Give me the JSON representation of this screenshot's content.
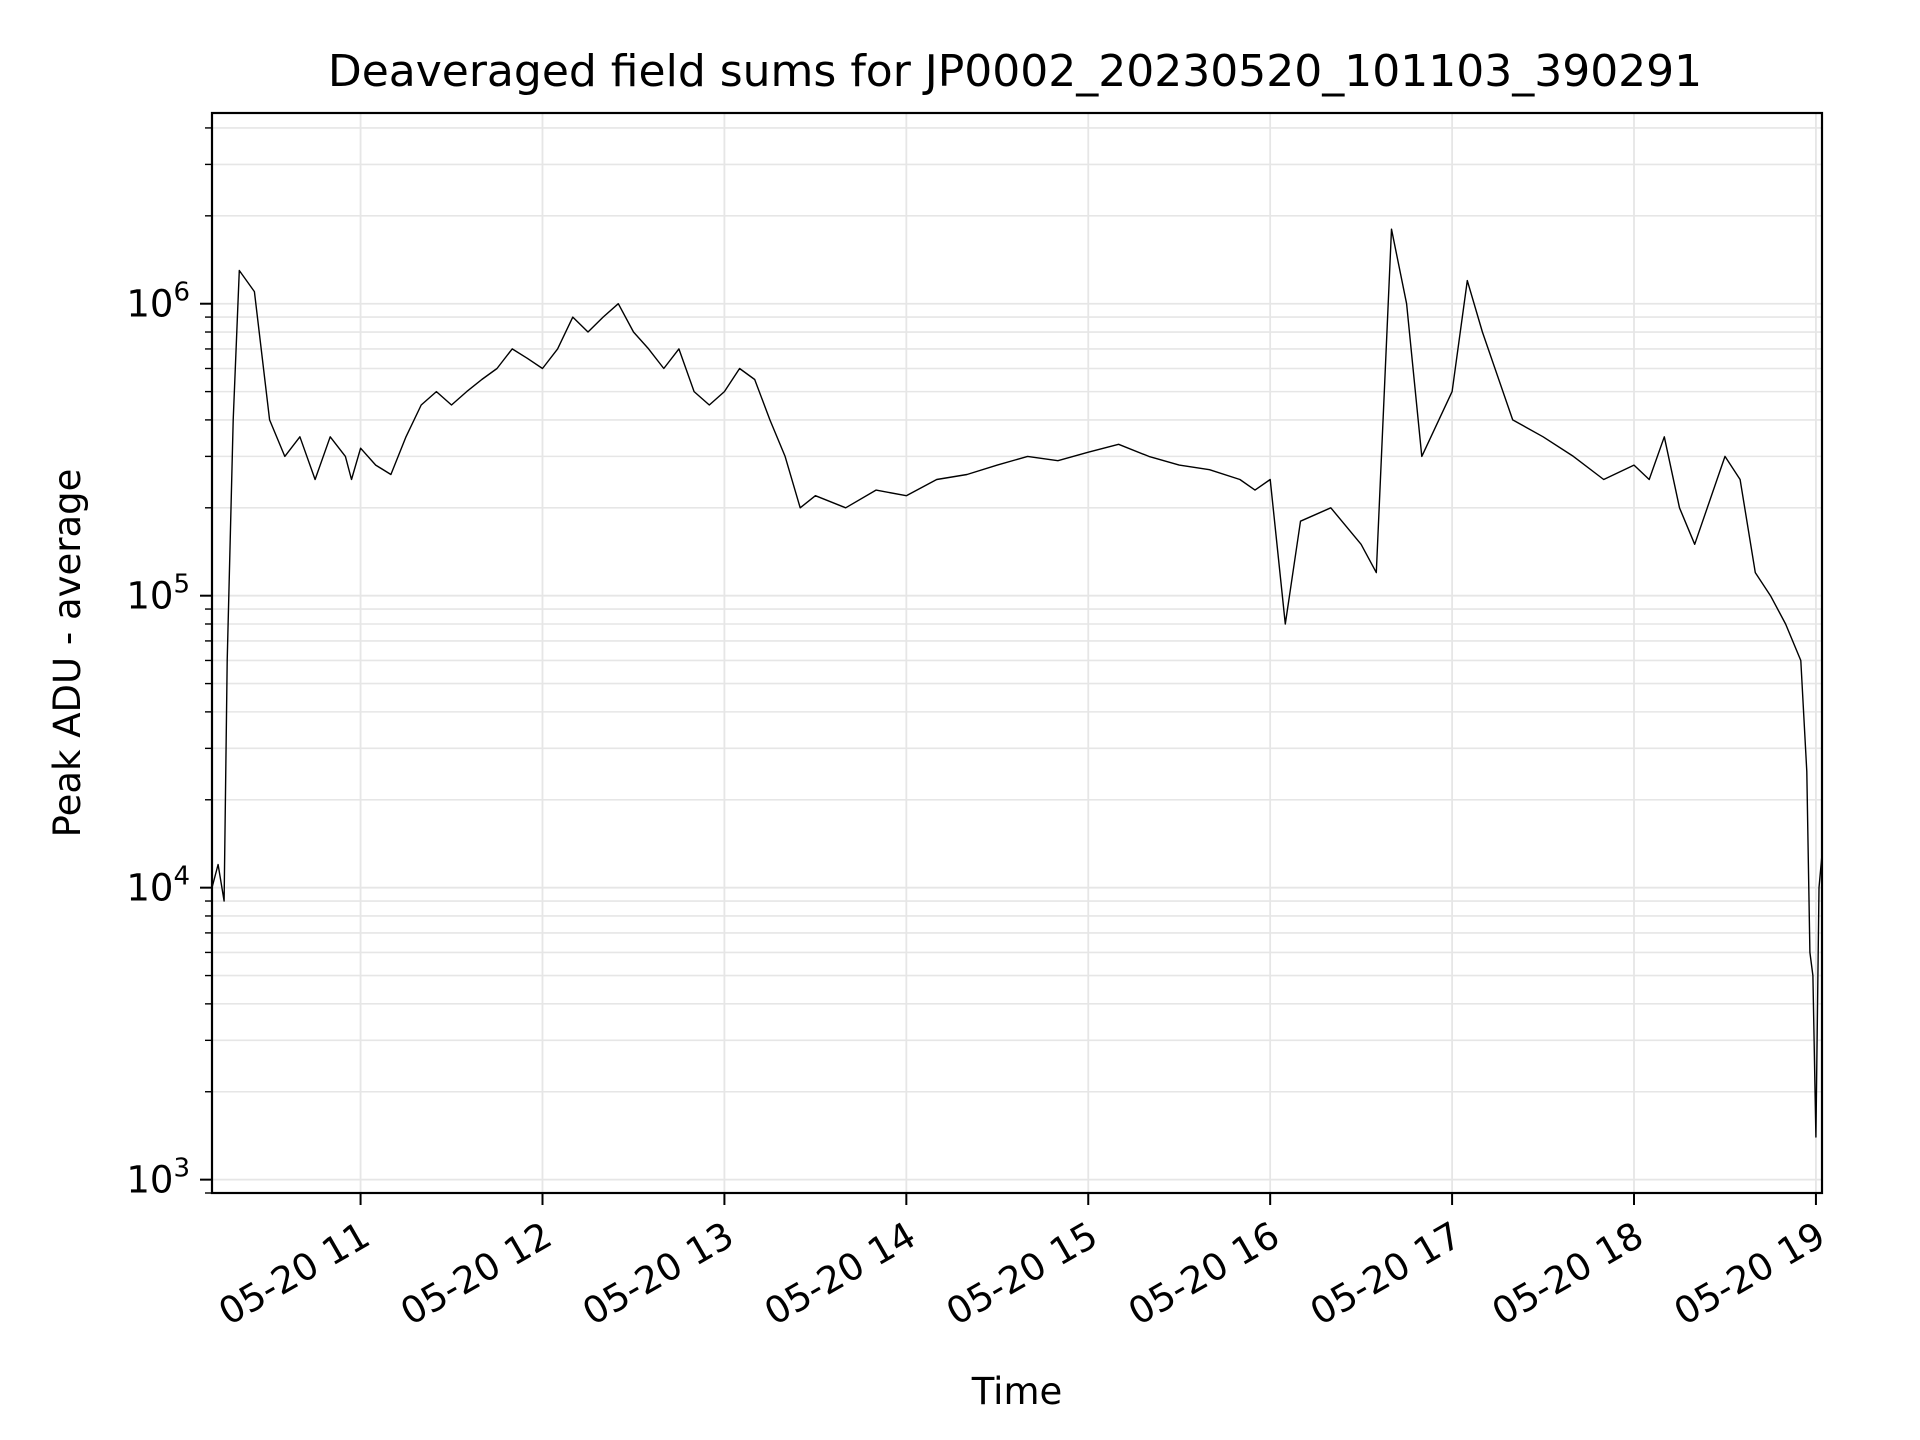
{
  "chart_data": {
    "type": "line",
    "title": "Deaveraged field sums for JP0002_20230520_101103_390291",
    "xlabel": "Time",
    "ylabel": "Peak ADU - average",
    "x_axis": {
      "type": "time",
      "range": [
        "05-20 10:11",
        "05-20 19:02"
      ],
      "ticks": [
        {
          "label": "05-20 11",
          "value": "05-20 11:00"
        },
        {
          "label": "05-20 12",
          "value": "05-20 12:00"
        },
        {
          "label": "05-20 13",
          "value": "05-20 13:00"
        },
        {
          "label": "05-20 14",
          "value": "05-20 14:00"
        },
        {
          "label": "05-20 15",
          "value": "05-20 15:00"
        },
        {
          "label": "05-20 16",
          "value": "05-20 16:00"
        },
        {
          "label": "05-20 17",
          "value": "05-20 17:00"
        },
        {
          "label": "05-20 18",
          "value": "05-20 18:00"
        },
        {
          "label": "05-20 19",
          "value": "05-20 19:00"
        }
      ],
      "tick_rotation_deg": 30
    },
    "y_axis": {
      "scale": "log",
      "range": [
        900,
        4500000
      ],
      "ticks": [
        {
          "base": "10",
          "exp": "3",
          "value": 1000
        },
        {
          "base": "10",
          "exp": "4",
          "value": 10000
        },
        {
          "base": "10",
          "exp": "5",
          "value": 100000
        },
        {
          "base": "10",
          "exp": "6",
          "value": 1000000
        }
      ]
    },
    "grid": true,
    "grid_minor_y": true,
    "line_color": "#000000",
    "grid_color": "#e6e6e6",
    "series": [
      {
        "x": [
          "05-20 10:11",
          "05-20 10:13",
          "05-20 10:15",
          "05-20 10:16",
          "05-20 10:18",
          "05-20 10:20",
          "05-20 10:25",
          "05-20 10:30",
          "05-20 10:35",
          "05-20 10:40",
          "05-20 10:45",
          "05-20 10:50",
          "05-20 10:55",
          "05-20 10:57",
          "05-20 11:00",
          "05-20 11:05",
          "05-20 11:10",
          "05-20 11:15",
          "05-20 11:20",
          "05-20 11:25",
          "05-20 11:30",
          "05-20 11:35",
          "05-20 11:40",
          "05-20 11:45",
          "05-20 11:50",
          "05-20 11:55",
          "05-20 12:00",
          "05-20 12:05",
          "05-20 12:10",
          "05-20 12:15",
          "05-20 12:20",
          "05-20 12:25",
          "05-20 12:30",
          "05-20 12:35",
          "05-20 12:40",
          "05-20 12:45",
          "05-20 12:50",
          "05-20 12:55",
          "05-20 13:00",
          "05-20 13:05",
          "05-20 13:10",
          "05-20 13:15",
          "05-20 13:20",
          "05-20 13:25",
          "05-20 13:30",
          "05-20 13:40",
          "05-20 13:50",
          "05-20 14:00",
          "05-20 14:10",
          "05-20 14:20",
          "05-20 14:30",
          "05-20 14:40",
          "05-20 14:50",
          "05-20 15:00",
          "05-20 15:10",
          "05-20 15:20",
          "05-20 15:30",
          "05-20 15:40",
          "05-20 15:50",
          "05-20 15:55",
          "05-20 16:00",
          "05-20 16:05",
          "05-20 16:10",
          "05-20 16:20",
          "05-20 16:30",
          "05-20 16:35",
          "05-20 16:40",
          "05-20 16:45",
          "05-20 16:50",
          "05-20 17:00",
          "05-20 17:05",
          "05-20 17:10",
          "05-20 17:20",
          "05-20 17:30",
          "05-20 17:40",
          "05-20 17:50",
          "05-20 18:00",
          "05-20 18:05",
          "05-20 18:10",
          "05-20 18:15",
          "05-20 18:20",
          "05-20 18:30",
          "05-20 18:35",
          "05-20 18:40",
          "05-20 18:45",
          "05-20 18:50",
          "05-20 18:55",
          "05-20 18:57",
          "05-20 18:58",
          "05-20 18:59",
          "05-20 19:00",
          "05-20 19:01",
          "05-20 19:02"
        ],
        "y": [
          10000,
          12000,
          9000,
          60000,
          400000,
          1300000,
          1100000,
          400000,
          300000,
          350000,
          250000,
          350000,
          300000,
          250000,
          320000,
          280000,
          260000,
          350000,
          450000,
          500000,
          450000,
          500000,
          550000,
          600000,
          700000,
          650000,
          600000,
          700000,
          900000,
          800000,
          900000,
          1000000,
          800000,
          700000,
          600000,
          700000,
          500000,
          450000,
          500000,
          600000,
          550000,
          400000,
          300000,
          200000,
          220000,
          200000,
          230000,
          220000,
          250000,
          260000,
          280000,
          300000,
          290000,
          310000,
          330000,
          300000,
          280000,
          270000,
          250000,
          230000,
          250000,
          80000,
          180000,
          200000,
          150000,
          120000,
          1800000,
          1000000,
          300000,
          500000,
          1200000,
          800000,
          400000,
          350000,
          300000,
          250000,
          280000,
          250000,
          350000,
          200000,
          150000,
          300000,
          250000,
          120000,
          100000,
          80000,
          60000,
          25000,
          6000,
          5000,
          1400,
          10000,
          13000
        ]
      }
    ]
  }
}
